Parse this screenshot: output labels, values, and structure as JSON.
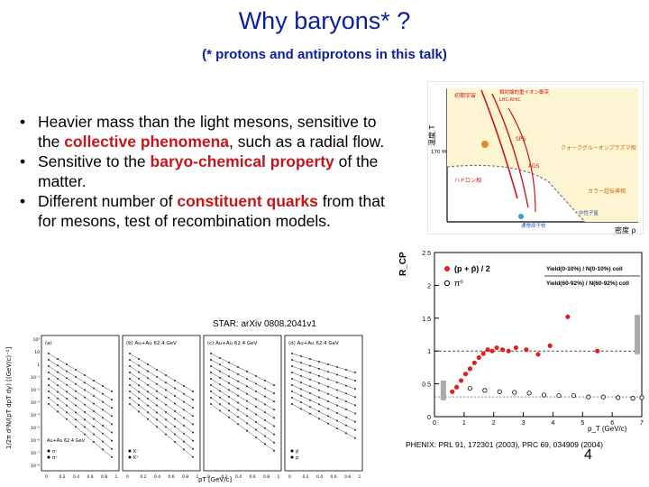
{
  "title": "Why baryons* ?",
  "subtitle": "(* protons and antiprotons in this talk)",
  "bullets": [
    {
      "pre": "Heavier mass than the light mesons, sensitive to the ",
      "hl": "collective phenomena",
      "post": ", such as a radial flow."
    },
    {
      "pre": "Sensitive to the ",
      "hl": "baryo-chemical property",
      "post": " of the matter."
    },
    {
      "pre": "Different number of ",
      "hl": "constituent quarks",
      "post": " from that for mesons, test of recombination models."
    }
  ],
  "phase_diagram": {
    "ylabel": "温度 T",
    "xlabel": "密度 ρ",
    "t_tick": "170 MeV",
    "labels": [
      "初期宇宙",
      "相対論的重イオン衝突",
      "LHC,RHIC",
      "SPS",
      "AGS",
      "クォークグルーオンプラズマ相",
      "ハドロン相",
      "カラー超伝導相",
      "中性子星",
      "通常原子核"
    ]
  },
  "rcp_plot": {
    "ylabel": "R_CP",
    "xlabel": "p_T (GeV/c)",
    "legend_p": "(p + p̄) / 2",
    "legend_pi": "π⁰",
    "formula_top": "Yield(0-10%) / N(0-10%) coll",
    "formula_bottom": "Yield(60-92%) / N(60-92%) coll",
    "y_ticks": [
      "2.5",
      "2",
      "1.5",
      "1",
      "0.5",
      "0"
    ],
    "x_ticks": [
      "0",
      "1",
      "2",
      "3",
      "4",
      "5",
      "6",
      "7"
    ],
    "caption": "PHENIX: PRL 91, 172301 (2003), PRC 69, 034909 (2004)"
  },
  "star_plot": {
    "caption": "STAR: arXiv 0808.2041v1",
    "panels": [
      "(a)",
      "(b) Au+Au 62.4 GeV",
      "(c) Au+Au 62.4 GeV",
      "(d) Au+Au 62.4 GeV"
    ],
    "xlabel": "pT [GeV/c]",
    "ylabel": "1/2π d²N/(pT dpT dy) [(GeV/c)⁻²]",
    "legend_a": "Au+Au 62.4 GeV",
    "y_ticks": [
      "10²",
      "10",
      "1",
      "10⁻¹",
      "10⁻²",
      "10⁻³",
      "10⁻⁴",
      "10⁻⁵",
      "10⁻⁶",
      "10⁻⁷",
      "10⁻⁸"
    ],
    "x_ticks": [
      "0",
      "0.2",
      "0.4",
      "0.6",
      "0.8",
      "1"
    ],
    "legends": [
      "π⁻",
      "π⁺",
      "K⁻",
      "K⁺",
      "p̄",
      "p"
    ]
  },
  "page_number": "4"
}
